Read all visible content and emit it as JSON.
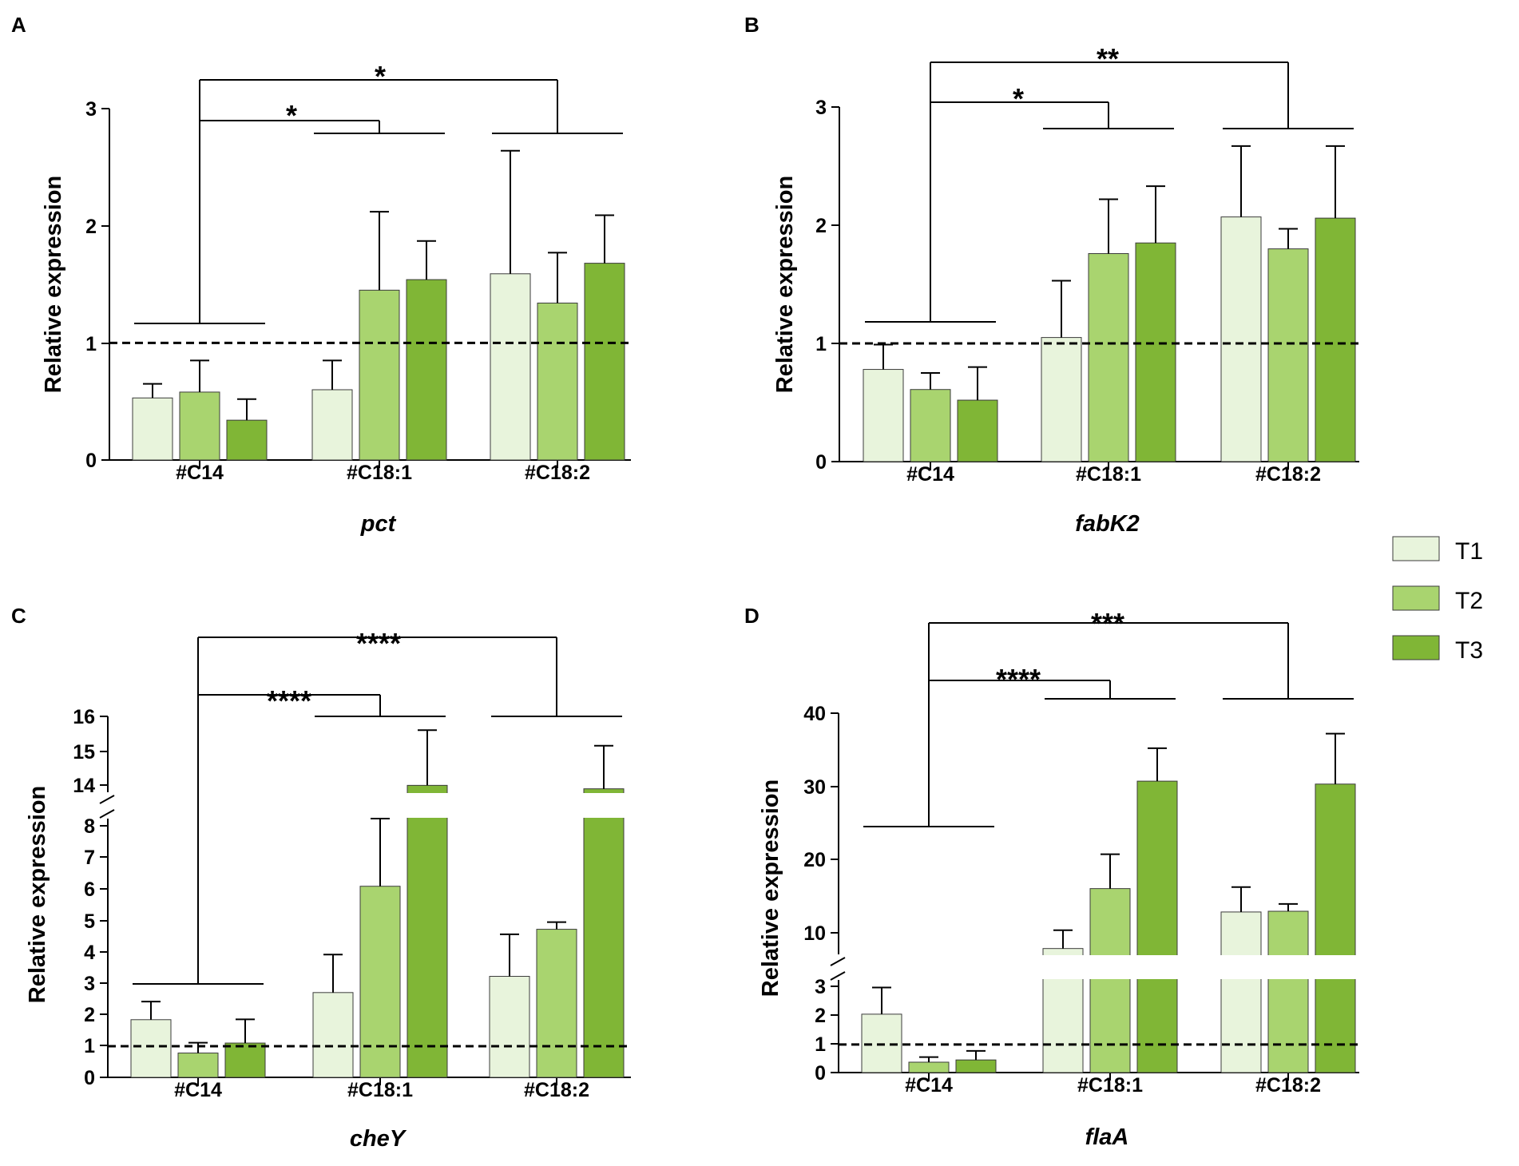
{
  "legend": [
    {
      "label": "T1",
      "color": "#e8f4dc"
    },
    {
      "label": "T2",
      "color": "#a9d46f"
    },
    {
      "label": "T3",
      "color": "#80b636"
    }
  ],
  "chart_data": [
    {
      "panel": "A",
      "type": "bar",
      "xlabel": "pct",
      "ylabel": "Relative expression",
      "categories": [
        "#C14",
        "#C18:1",
        "#C18:2"
      ],
      "ylim": [
        0,
        3
      ],
      "yticks": [
        "0",
        "1",
        "2",
        "3"
      ],
      "reference_line": 1,
      "series": [
        {
          "name": "T1",
          "values": [
            0.53,
            0.6,
            1.59
          ],
          "errors": [
            0.12,
            0.25,
            1.05
          ]
        },
        {
          "name": "T2",
          "values": [
            0.58,
            1.45,
            1.34
          ],
          "errors": [
            0.27,
            0.67,
            0.43
          ]
        },
        {
          "name": "T3",
          "values": [
            0.34,
            1.54,
            1.68
          ],
          "errors": [
            0.18,
            0.33,
            0.41
          ]
        }
      ],
      "significance": [
        {
          "from": "#C14",
          "to": "#C18:1",
          "label": "*"
        },
        {
          "from": "#C14",
          "to": "#C18:2",
          "label": "*"
        }
      ]
    },
    {
      "panel": "B",
      "type": "bar",
      "xlabel": "fabK2",
      "ylabel": "Relative expression",
      "categories": [
        "#C14",
        "#C18:1",
        "#C18:2"
      ],
      "ylim": [
        0,
        3
      ],
      "yticks": [
        "0",
        "1",
        "2",
        "3"
      ],
      "reference_line": 1,
      "series": [
        {
          "name": "T1",
          "values": [
            0.78,
            1.05,
            2.07
          ],
          "errors": [
            0.21,
            0.48,
            0.6
          ]
        },
        {
          "name": "T2",
          "values": [
            0.61,
            1.76,
            1.8
          ],
          "errors": [
            0.14,
            0.46,
            0.17
          ]
        },
        {
          "name": "T3",
          "values": [
            0.52,
            1.85,
            2.06
          ],
          "errors": [
            0.28,
            0.48,
            0.61
          ]
        }
      ],
      "significance": [
        {
          "from": "#C14",
          "to": "#C18:1",
          "label": "*"
        },
        {
          "from": "#C14",
          "to": "#C18:2",
          "label": "**"
        }
      ]
    },
    {
      "panel": "C",
      "type": "bar",
      "xlabel": "cheY",
      "ylabel": "Relative expression",
      "categories": [
        "#C14",
        "#C18:1",
        "#C18:2"
      ],
      "y_axis_break": {
        "lower": [
          0,
          8.3
        ],
        "upper": [
          13.8,
          16
        ]
      },
      "yticks": [
        "0",
        "1",
        "2",
        "3",
        "4",
        "5",
        "6",
        "7",
        "8",
        "14",
        "15",
        "16"
      ],
      "reference_line": 1,
      "series": [
        {
          "name": "T1",
          "values": [
            1.85,
            2.72,
            3.24
          ],
          "errors": [
            0.58,
            1.22,
            1.35
          ]
        },
        {
          "name": "T2",
          "values": [
            0.78,
            6.13,
            4.75
          ],
          "errors": [
            0.33,
            2.17,
            0.23
          ]
        },
        {
          "name": "T3",
          "values": [
            1.1,
            14.0,
            13.9
          ],
          "errors": [
            0.76,
            1.6,
            1.25
          ]
        }
      ],
      "significance": [
        {
          "from": "#C14",
          "to": "#C18:1",
          "label": "****"
        },
        {
          "from": "#C14",
          "to": "#C18:2",
          "label": "****"
        }
      ]
    },
    {
      "panel": "D",
      "type": "bar",
      "xlabel": "flaA",
      "ylabel": "Relative expression",
      "categories": [
        "#C14",
        "#C18:1",
        "#C18:2"
      ],
      "y_axis_break": {
        "lower": [
          0,
          3.3
        ],
        "upper": [
          7,
          40
        ]
      },
      "yticks": [
        "0",
        "1",
        "2",
        "3",
        "10",
        "20",
        "30",
        "40"
      ],
      "reference_line": 1,
      "series": [
        {
          "name": "T1",
          "values": [
            2.08,
            7.8,
            12.8
          ],
          "errors": [
            0.95,
            2.5,
            3.4
          ]
        },
        {
          "name": "T2",
          "values": [
            0.37,
            16.0,
            12.9
          ],
          "errors": [
            0.18,
            4.7,
            1.0
          ]
        },
        {
          "name": "T3",
          "values": [
            0.45,
            30.7,
            30.3
          ],
          "errors": [
            0.32,
            4.5,
            6.9
          ]
        }
      ],
      "significance": [
        {
          "from": "#C14",
          "to": "#C18:1",
          "label": "****"
        },
        {
          "from": "#C14",
          "to": "#C18:2",
          "label": "***"
        }
      ]
    }
  ]
}
